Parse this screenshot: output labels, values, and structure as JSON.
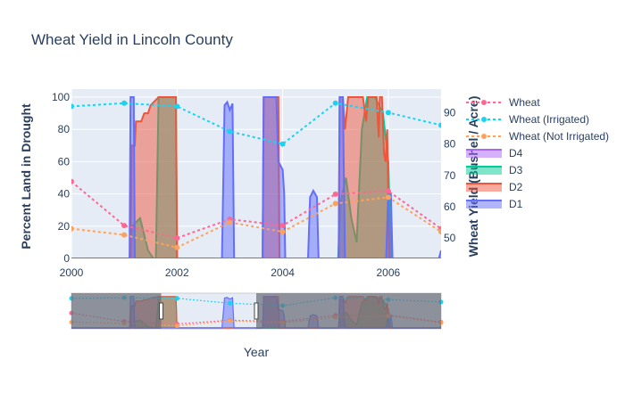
{
  "chart_data": {
    "type": "line",
    "title": "Wheat Yield in Lincoln County",
    "xlabel": "Year",
    "ylabel_left": "Percent Land in Drought",
    "ylabel_right": "Wheat Yield (Bushel / Acre)",
    "x_range": [
      2000,
      2007
    ],
    "x_ticks": [
      "2000",
      "2002",
      "2004",
      "2006"
    ],
    "y_left_range": [
      0,
      105
    ],
    "y_left_ticks": [
      "0",
      "20",
      "40",
      "60",
      "80",
      "100"
    ],
    "y_right_range": [
      43.5,
      97.5
    ],
    "y_right_ticks": [
      "50",
      "60",
      "70",
      "80",
      "90"
    ],
    "grid": true,
    "legend_position": "right",
    "rangeslider": {
      "visible": true,
      "selected_range": [
        2001.7,
        2003.5
      ]
    },
    "yield_series": [
      {
        "name": "Wheat",
        "color": "#ff6692",
        "x": [
          2000,
          2001,
          2002,
          2003,
          2004,
          2005,
          2006,
          2007
        ],
        "y": [
          68,
          54,
          50,
          56,
          54,
          64,
          65,
          53
        ]
      },
      {
        "name": "Wheat (Irrigated)",
        "color": "#19d3f3",
        "x": [
          2000,
          2001,
          2002,
          2003,
          2004,
          2005,
          2006,
          2007
        ],
        "y": [
          92,
          93,
          92,
          84,
          80,
          93,
          90,
          86
        ]
      },
      {
        "name": "Wheat (Not Irrigated)",
        "color": "#ffa15a",
        "x": [
          2000,
          2001,
          2002,
          2003,
          2004,
          2005,
          2006,
          2007
        ],
        "y": [
          53,
          51,
          47,
          55,
          52,
          61,
          63,
          52
        ]
      }
    ],
    "drought_series": [
      {
        "name": "D4",
        "color": "#ab63fa",
        "points": [
          [
            2000,
            0
          ],
          [
            2007,
            0
          ]
        ]
      },
      {
        "name": "D3",
        "color": "#00cc96",
        "points": [
          [
            2000,
            0
          ],
          [
            2001.1,
            0
          ],
          [
            2001.15,
            20
          ],
          [
            2001.3,
            25
          ],
          [
            2001.45,
            5
          ],
          [
            2001.55,
            0
          ],
          [
            2001.6,
            0
          ],
          [
            2001.65,
            100
          ],
          [
            2001.98,
            100
          ],
          [
            2002.0,
            0
          ],
          [
            2005.05,
            0
          ],
          [
            2005.1,
            35
          ],
          [
            2005.2,
            50
          ],
          [
            2005.3,
            25
          ],
          [
            2005.4,
            10
          ],
          [
            2005.5,
            80
          ],
          [
            2005.6,
            100
          ],
          [
            2005.75,
            100
          ],
          [
            2005.9,
            90
          ],
          [
            2006.0,
            60
          ],
          [
            2006.05,
            0
          ],
          [
            2007,
            0
          ]
        ]
      },
      {
        "name": "D2",
        "color": "#ef553b",
        "points": [
          [
            2000,
            0
          ],
          [
            2001.12,
            0
          ],
          [
            2001.14,
            70
          ],
          [
            2001.2,
            70
          ],
          [
            2001.22,
            85
          ],
          [
            2001.32,
            85
          ],
          [
            2001.38,
            90
          ],
          [
            2001.45,
            90
          ],
          [
            2001.5,
            95
          ],
          [
            2001.65,
            100
          ],
          [
            2001.98,
            100
          ],
          [
            2002.0,
            0
          ],
          [
            2003.62,
            0
          ],
          [
            2003.64,
            100
          ],
          [
            2003.92,
            100
          ],
          [
            2003.94,
            0
          ],
          [
            2005.06,
            0
          ],
          [
            2005.08,
            100
          ],
          [
            2005.14,
            100
          ],
          [
            2005.18,
            80
          ],
          [
            2005.24,
            100
          ],
          [
            2005.52,
            100
          ],
          [
            2005.58,
            85
          ],
          [
            2005.62,
            100
          ],
          [
            2005.78,
            100
          ],
          [
            2005.82,
            75
          ],
          [
            2005.84,
            100
          ],
          [
            2005.88,
            100
          ],
          [
            2005.92,
            65
          ],
          [
            2005.95,
            60
          ],
          [
            2005.98,
            80
          ],
          [
            2006.02,
            0
          ],
          [
            2007,
            0
          ]
        ]
      },
      {
        "name": "D1",
        "color": "#636efa",
        "points": [
          [
            2000,
            0
          ],
          [
            2001.1,
            0
          ],
          [
            2001.12,
            100
          ],
          [
            2001.18,
            100
          ],
          [
            2001.2,
            0
          ],
          [
            2002.85,
            0
          ],
          [
            2002.9,
            95
          ],
          [
            2002.95,
            97
          ],
          [
            2003.0,
            92
          ],
          [
            2003.05,
            96
          ],
          [
            2003.08,
            0
          ],
          [
            2003.62,
            0
          ],
          [
            2003.64,
            100
          ],
          [
            2003.88,
            100
          ],
          [
            2003.92,
            60
          ],
          [
            2004.0,
            55
          ],
          [
            2004.03,
            40
          ],
          [
            2004.05,
            0
          ],
          [
            2004.48,
            0
          ],
          [
            2004.52,
            38
          ],
          [
            2004.58,
            42
          ],
          [
            2004.65,
            38
          ],
          [
            2004.68,
            0
          ],
          [
            2005.06,
            0
          ],
          [
            2005.08,
            100
          ],
          [
            2005.14,
            100
          ],
          [
            2005.18,
            0
          ],
          [
            2005.96,
            0
          ],
          [
            2006.0,
            42
          ],
          [
            2006.05,
            40
          ],
          [
            2006.08,
            0
          ],
          [
            2006.96,
            0
          ],
          [
            2007,
            5
          ]
        ]
      }
    ]
  }
}
